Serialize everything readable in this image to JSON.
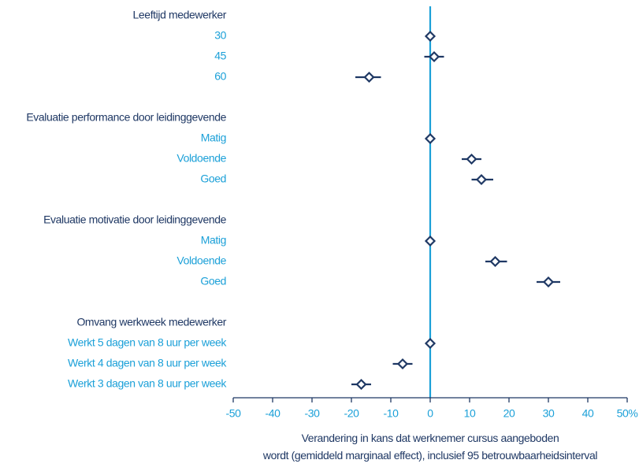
{
  "chart_data": {
    "type": "scatter",
    "subtype": "forest-plot",
    "title": "",
    "xlabel_line1": "Verandering in kans dat werknemer cursus aangeboden",
    "xlabel_line2": "wordt (gemiddeld marginaal effect), inclusief 95 betrouwbaarheidsinterval",
    "xlim": [
      -50,
      50
    ],
    "xticks": [
      "-50",
      "-40",
      "-30",
      "-20",
      "-10",
      "0",
      "10",
      "20",
      "30",
      "40",
      "50%"
    ],
    "xtick_values": [
      -50,
      -40,
      -30,
      -20,
      -10,
      0,
      10,
      20,
      30,
      40,
      50
    ],
    "reference_line": 0,
    "grid": false,
    "groups": [
      {
        "header": "Leeftijd medewerker",
        "items": [
          {
            "label": "30",
            "value": 0,
            "ci": [
              0,
              0
            ]
          },
          {
            "label": "45",
            "value": 1,
            "ci": [
              -1.5,
              3.5
            ]
          },
          {
            "label": "60",
            "value": -15.5,
            "ci": [
              -19,
              -12.5
            ]
          }
        ]
      },
      {
        "header": "Evaluatie performance door leidinggevende",
        "items": [
          {
            "label": "Matig",
            "value": 0,
            "ci": [
              0,
              0
            ]
          },
          {
            "label": "Voldoende",
            "value": 10.5,
            "ci": [
              8,
              13
            ]
          },
          {
            "label": "Goed",
            "value": 13,
            "ci": [
              10.5,
              16
            ]
          }
        ]
      },
      {
        "header": "Evaluatie motivatie door leidinggevende",
        "items": [
          {
            "label": "Matig",
            "value": 0,
            "ci": [
              0,
              0
            ]
          },
          {
            "label": "Voldoende",
            "value": 16.5,
            "ci": [
              14,
              19.5
            ]
          },
          {
            "label": "Goed",
            "value": 30,
            "ci": [
              27,
              33
            ]
          }
        ]
      },
      {
        "header": "Omvang werkweek medewerker",
        "items": [
          {
            "label": "Werkt 5 dagen van 8 uur per week",
            "value": 0,
            "ci": [
              0,
              0
            ]
          },
          {
            "label": "Werkt 4 dagen van 8 uur per week",
            "value": -7,
            "ci": [
              -9.5,
              -4.5
            ]
          },
          {
            "label": "Werkt 3 dagen van 8 uur per week",
            "value": -17.5,
            "ci": [
              -20,
              -15
            ]
          }
        ]
      }
    ],
    "colors": {
      "header_text": "#1f3864",
      "item_text": "#1ba0d8",
      "marker": "#1f3864",
      "reference_line": "#1ba0d8",
      "axis": "#1f3864",
      "tick_labels": "#1ba0d8"
    }
  }
}
